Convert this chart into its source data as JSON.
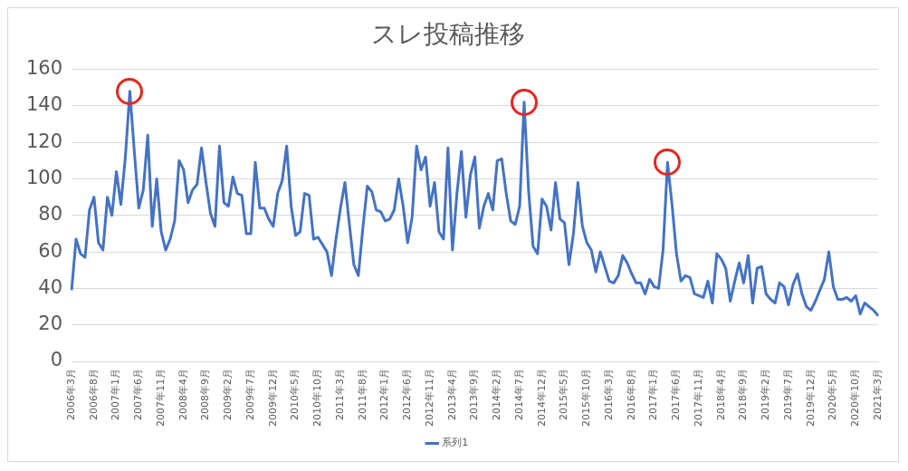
{
  "chart_data": {
    "type": "line",
    "title": "スレ投稿推移",
    "categories": [
      "2006年3月",
      null,
      null,
      null,
      null,
      "2006年8月",
      null,
      null,
      null,
      null,
      "2007年1月",
      null,
      null,
      null,
      null,
      "2007年6月",
      null,
      null,
      null,
      null,
      "2007年11月",
      null,
      null,
      null,
      null,
      "2008年4月",
      null,
      null,
      null,
      null,
      "2008年9月",
      null,
      null,
      null,
      null,
      "2009年2月",
      null,
      null,
      null,
      null,
      "2009年7月",
      null,
      null,
      null,
      null,
      "2009年12月",
      null,
      null,
      null,
      null,
      "2010年5月",
      null,
      null,
      null,
      null,
      "2010年10月",
      null,
      null,
      null,
      null,
      "2011年3月",
      null,
      null,
      null,
      null,
      "2011年8月",
      null,
      null,
      null,
      null,
      "2012年1月",
      null,
      null,
      null,
      null,
      "2012年6月",
      null,
      null,
      null,
      null,
      "2012年11月",
      null,
      null,
      null,
      null,
      "2013年4月",
      null,
      null,
      null,
      null,
      "2013年9月",
      null,
      null,
      null,
      null,
      "2014年2月",
      null,
      null,
      null,
      null,
      "2014年7月",
      null,
      null,
      null,
      null,
      "2014年12月",
      null,
      null,
      null,
      null,
      "2015年5月",
      null,
      null,
      null,
      null,
      "2015年10月",
      null,
      null,
      null,
      null,
      "2016年3月",
      null,
      null,
      null,
      null,
      "2016年8月",
      null,
      null,
      null,
      null,
      "2017年1月",
      null,
      null,
      null,
      null,
      "2017年6月",
      null,
      null,
      null,
      null,
      "2017年11月",
      null,
      null,
      null,
      null,
      "2018年4月",
      null,
      null,
      null,
      null,
      "2018年9月",
      null,
      null,
      null,
      null,
      "2019年2月",
      null,
      null,
      null,
      null,
      "2019年7月",
      null,
      null,
      null,
      null,
      "2019年12月",
      null,
      null,
      null,
      null,
      "2020年5月",
      null,
      null,
      null,
      null,
      "2020年10月",
      null,
      null,
      null,
      null,
      "2021年3月"
    ],
    "series": [
      {
        "name": "系列1",
        "color": "#4472c4",
        "values": [
          39,
          67,
          59,
          57,
          83,
          90,
          65,
          61,
          90,
          80,
          104,
          86,
          112,
          148,
          115,
          84,
          94,
          124,
          74,
          100,
          71,
          61,
          67,
          77,
          110,
          105,
          87,
          94,
          97,
          117,
          98,
          81,
          74,
          118,
          87,
          85,
          101,
          92,
          91,
          70,
          70,
          109,
          84,
          84,
          78,
          74,
          92,
          99,
          118,
          85,
          69,
          71,
          92,
          91,
          67,
          68,
          64,
          60,
          47,
          67,
          84,
          98,
          75,
          53,
          47,
          73,
          96,
          93,
          83,
          82,
          77,
          78,
          83,
          100,
          85,
          65,
          79,
          118,
          105,
          112,
          85,
          98,
          71,
          67,
          117,
          61,
          92,
          115,
          79,
          102,
          112,
          73,
          85,
          92,
          83,
          110,
          111,
          92,
          77,
          75,
          85,
          142,
          93,
          63,
          59,
          89,
          85,
          72,
          98,
          78,
          76,
          53,
          70,
          98,
          74,
          65,
          61,
          49,
          60,
          52,
          44,
          43,
          47,
          58,
          54,
          48,
          43,
          43,
          37,
          45,
          41,
          40,
          61,
          109,
          86,
          59,
          44,
          47,
          46,
          37,
          36,
          35,
          44,
          32,
          59,
          56,
          51,
          33,
          44,
          54,
          43,
          58,
          32,
          51,
          52,
          37,
          34,
          32,
          43,
          41,
          31,
          42,
          48,
          37,
          30,
          28,
          33,
          39,
          45,
          60,
          41,
          34,
          34,
          35,
          33,
          36,
          26,
          32,
          30,
          28,
          25
        ]
      }
    ],
    "ylim": [
      0,
      160
    ],
    "yticks": [
      0,
      20,
      40,
      60,
      80,
      100,
      120,
      140,
      160
    ],
    "grid": "y",
    "legend": "bottom",
    "marker": "none",
    "line_style": "solid"
  }
}
